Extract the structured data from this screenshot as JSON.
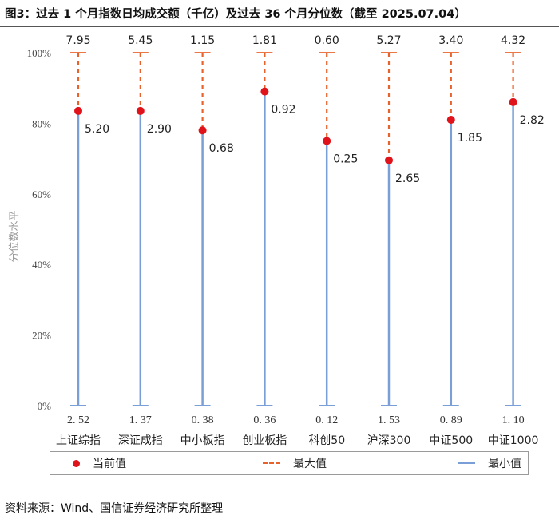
{
  "title": "图3：过去 1 个月指数日均成交额（千亿）及过去 36 个月分位数（截至 2025.07.04）",
  "source": "资料来源：Wind、国信证券经济研究所整理",
  "chart_data": {
    "type": "range-dot",
    "ylabel": "分位数水平",
    "ylim": [
      0,
      100
    ],
    "yticks": [
      "0%",
      "20%",
      "40%",
      "60%",
      "80%",
      "100%"
    ],
    "categories": [
      "上证综指",
      "深证成指",
      "中小板指",
      "创业板指",
      "科创50",
      "沪深300",
      "中证500",
      "中证1000"
    ],
    "current_percentile": [
      83.5,
      83.5,
      78,
      89,
      75,
      69.5,
      81,
      86
    ],
    "current_labels": [
      "5.20",
      "2.90",
      "0.68",
      "0.92",
      "0.25",
      "2.65",
      "1.85",
      "2.82"
    ],
    "max_labels": [
      "7.95",
      "5.45",
      "1.15",
      "1.81",
      "0.60",
      "5.27",
      "3.40",
      "4.32"
    ],
    "min_labels": [
      "2. 52",
      "1. 37",
      "0. 38",
      "0. 36",
      "0. 12",
      "1. 53",
      "0. 89",
      "1. 10"
    ],
    "series": [
      {
        "name": "当前值",
        "color": "#e0121a"
      },
      {
        "name": "最大值",
        "color": "#e8632c"
      },
      {
        "name": "最小值",
        "color": "#7a9fd6"
      }
    ]
  }
}
